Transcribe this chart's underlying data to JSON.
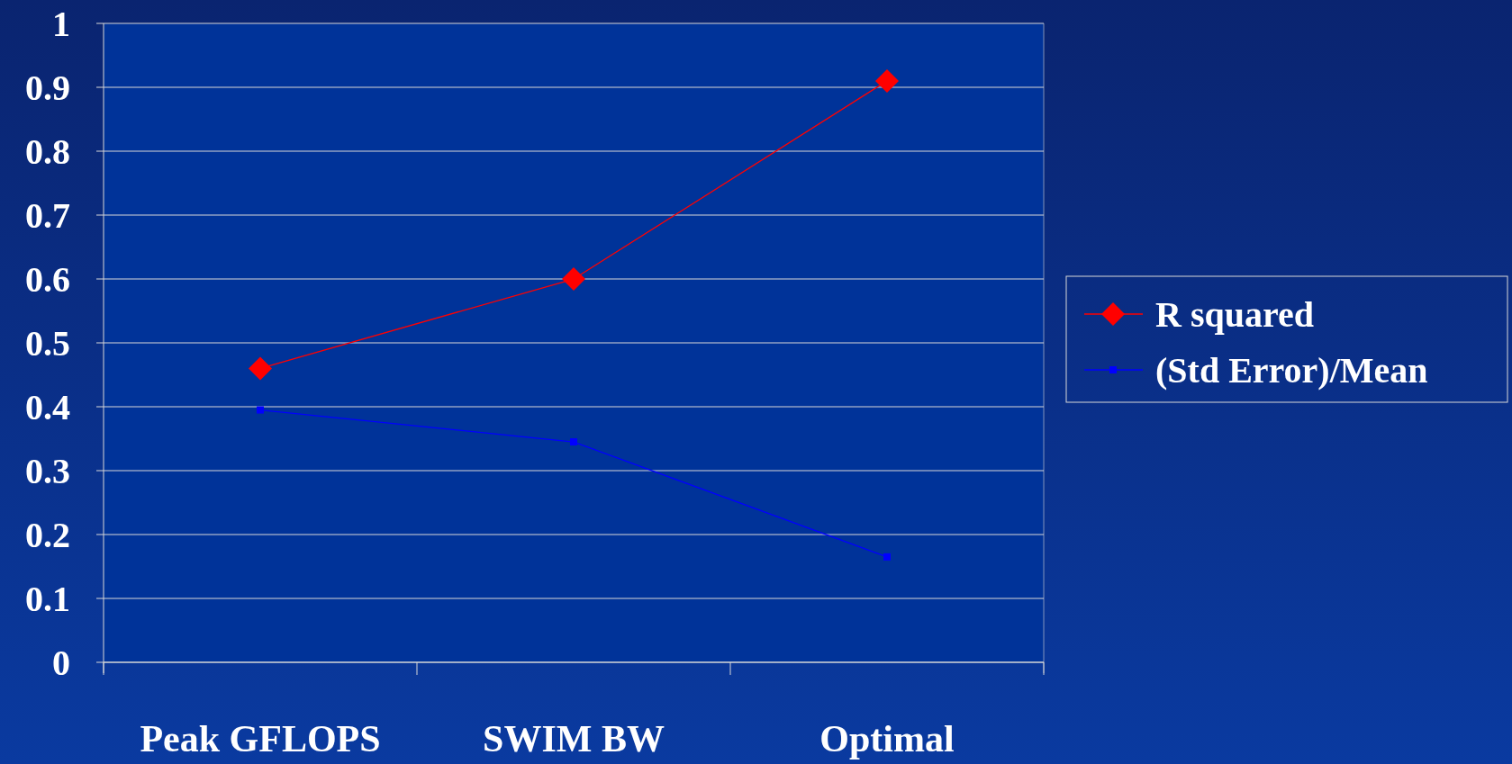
{
  "chart_data": {
    "type": "line",
    "categories": [
      "Peak GFLOPS",
      "SWIM BW",
      "Optimal"
    ],
    "series": [
      {
        "name": "R squared",
        "color": "#ff0000",
        "values": [
          0.46,
          0.6,
          0.91
        ],
        "marker": "diamond"
      },
      {
        "name": "(Std Error)/Mean",
        "color": "#0000ff",
        "values": [
          0.395,
          0.345,
          0.165
        ],
        "marker": "square"
      }
    ],
    "ylim": [
      0,
      1
    ],
    "yticks": [
      0,
      0.1,
      0.2,
      0.3,
      0.4,
      0.5,
      0.6,
      0.7,
      0.8,
      0.9,
      1
    ],
    "grid": "y",
    "legend": "right",
    "line_style": "solid"
  }
}
